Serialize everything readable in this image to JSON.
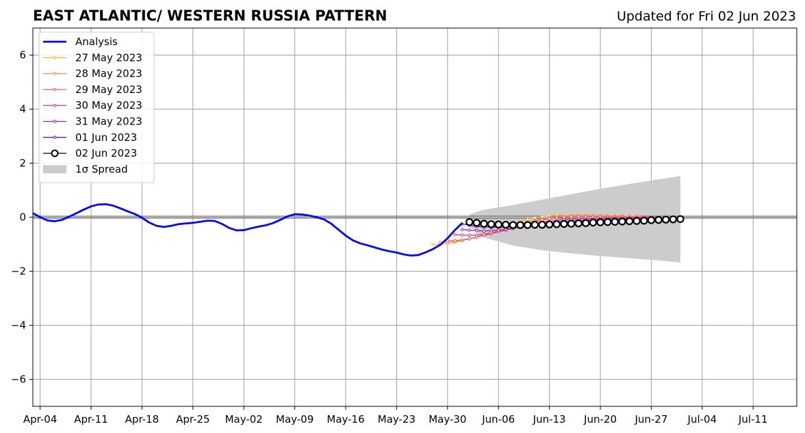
{
  "chart_data": {
    "type": "line",
    "title": "EAST ATLANTIC/ WESTERN RUSSIA PATTERN",
    "subtitle": "Updated for Fri 02 Jun 2023",
    "xlabel": "",
    "ylabel": "",
    "xlim": [
      "2023-04-03",
      "2023-07-17"
    ],
    "ylim": [
      -7,
      7
    ],
    "grid": true,
    "legend_position": "top-left",
    "x_ticks": [
      "Apr-04",
      "Apr-11",
      "Apr-18",
      "Apr-25",
      "May-02",
      "May-09",
      "May-16",
      "May-23",
      "May-30",
      "Jun-06",
      "Jun-13",
      "Jun-20",
      "Jun-27",
      "Jul-04",
      "Jul-11"
    ],
    "x_tick_dates": [
      "2023-04-04",
      "2023-04-11",
      "2023-04-18",
      "2023-04-25",
      "2023-05-02",
      "2023-05-09",
      "2023-05-16",
      "2023-05-23",
      "2023-05-30",
      "2023-06-06",
      "2023-06-13",
      "2023-06-20",
      "2023-06-27",
      "2023-07-04",
      "2023-07-11"
    ],
    "y_ticks": [
      6,
      4,
      2,
      0,
      -2,
      -4,
      -6
    ],
    "y_tick_labels": [
      "6",
      "4",
      "2",
      "0",
      "−2",
      "−4",
      "−6"
    ],
    "spread": {
      "name": "1σ Spread",
      "color": "#cccccc",
      "x": [
        "2023-06-02",
        "2023-06-04",
        "2023-06-08",
        "2023-06-12",
        "2023-06-16",
        "2023-06-20",
        "2023-06-24",
        "2023-06-28",
        "2023-07-01"
      ],
      "upper": [
        0.1,
        0.28,
        0.45,
        0.65,
        0.85,
        1.05,
        1.23,
        1.4,
        1.53
      ],
      "lower": [
        -0.35,
        -0.75,
        -1.05,
        -1.22,
        -1.34,
        -1.44,
        -1.52,
        -1.6,
        -1.68
      ]
    },
    "analysis": {
      "name": "Analysis",
      "color": "#0000ff",
      "x": [
        "2023-04-03",
        "2023-04-04",
        "2023-04-05",
        "2023-04-06",
        "2023-04-07",
        "2023-04-08",
        "2023-04-09",
        "2023-04-10",
        "2023-04-11",
        "2023-04-12",
        "2023-04-13",
        "2023-04-14",
        "2023-04-15",
        "2023-04-16",
        "2023-04-17",
        "2023-04-18",
        "2023-04-19",
        "2023-04-20",
        "2023-04-21",
        "2023-04-22",
        "2023-04-23",
        "2023-04-24",
        "2023-04-25",
        "2023-04-26",
        "2023-04-27",
        "2023-04-28",
        "2023-04-29",
        "2023-04-30",
        "2023-05-01",
        "2023-05-02",
        "2023-05-03",
        "2023-05-04",
        "2023-05-05",
        "2023-05-06",
        "2023-05-07",
        "2023-05-08",
        "2023-05-09",
        "2023-05-10",
        "2023-05-11",
        "2023-05-12",
        "2023-05-13",
        "2023-05-14",
        "2023-05-15",
        "2023-05-16",
        "2023-05-17",
        "2023-05-18",
        "2023-05-19",
        "2023-05-20",
        "2023-05-21",
        "2023-05-22",
        "2023-05-23",
        "2023-05-24",
        "2023-05-25",
        "2023-05-26",
        "2023-05-27",
        "2023-05-28",
        "2023-05-29",
        "2023-05-30",
        "2023-05-31",
        "2023-06-01"
      ],
      "values": [
        0.15,
        0.0,
        -0.12,
        -0.15,
        -0.1,
        0.02,
        0.15,
        0.28,
        0.4,
        0.47,
        0.48,
        0.43,
        0.33,
        0.22,
        0.12,
        -0.02,
        -0.2,
        -0.32,
        -0.36,
        -0.32,
        -0.26,
        -0.23,
        -0.21,
        -0.17,
        -0.13,
        -0.14,
        -0.25,
        -0.4,
        -0.49,
        -0.48,
        -0.41,
        -0.35,
        -0.3,
        -0.22,
        -0.1,
        0.03,
        0.11,
        0.1,
        0.06,
        0.0,
        -0.08,
        -0.24,
        -0.46,
        -0.68,
        -0.86,
        -0.97,
        -1.04,
        -1.12,
        -1.2,
        -1.26,
        -1.31,
        -1.38,
        -1.42,
        -1.4,
        -1.3,
        -1.18,
        -1.02,
        -0.78,
        -0.48,
        -0.22
      ]
    },
    "series": [
      {
        "name": "27 May 2023",
        "color": "#fbb43a",
        "x": [
          "2023-05-28",
          "2023-05-29",
          "2023-05-30",
          "2023-05-31",
          "2023-06-01",
          "2023-06-02",
          "2023-06-03",
          "2023-06-04",
          "2023-06-05",
          "2023-06-06",
          "2023-06-07",
          "2023-06-08",
          "2023-06-09",
          "2023-06-10",
          "2023-06-11",
          "2023-06-12",
          "2023-06-13",
          "2023-06-14",
          "2023-06-15",
          "2023-06-16",
          "2023-06-17",
          "2023-06-18",
          "2023-06-19",
          "2023-06-20",
          "2023-06-21",
          "2023-06-22",
          "2023-06-23",
          "2023-06-24",
          "2023-06-25",
          "2023-06-26"
        ],
        "values": [
          -1.02,
          -1.0,
          -0.98,
          -0.93,
          -0.87,
          -0.8,
          -0.72,
          -0.63,
          -0.53,
          -0.43,
          -0.34,
          -0.25,
          -0.16,
          -0.08,
          -0.02,
          0.02,
          0.05,
          0.07,
          0.08,
          0.08,
          0.08,
          0.07,
          0.07,
          0.06,
          0.06,
          0.05,
          0.05,
          0.04,
          0.03,
          0.02
        ]
      },
      {
        "name": "28 May 2023",
        "color": "#f58a4a",
        "x": [
          "2023-05-29",
          "2023-05-30",
          "2023-05-31",
          "2023-06-01",
          "2023-06-02",
          "2023-06-03",
          "2023-06-04",
          "2023-06-05",
          "2023-06-06",
          "2023-06-07",
          "2023-06-08",
          "2023-06-09",
          "2023-06-10",
          "2023-06-11",
          "2023-06-12",
          "2023-06-13",
          "2023-06-14",
          "2023-06-15",
          "2023-06-16",
          "2023-06-17",
          "2023-06-18",
          "2023-06-19",
          "2023-06-20",
          "2023-06-21",
          "2023-06-22",
          "2023-06-23",
          "2023-06-24",
          "2023-06-25",
          "2023-06-26",
          "2023-06-27"
        ],
        "values": [
          -0.93,
          -0.92,
          -0.9,
          -0.86,
          -0.81,
          -0.74,
          -0.66,
          -0.58,
          -0.5,
          -0.42,
          -0.34,
          -0.26,
          -0.19,
          -0.12,
          -0.07,
          -0.02,
          0.01,
          0.03,
          0.04,
          0.05,
          0.05,
          0.05,
          0.05,
          0.04,
          0.04,
          0.03,
          0.03,
          0.02,
          0.02,
          0.01
        ]
      },
      {
        "name": "29 May 2023",
        "color": "#e65a6a",
        "x": [
          "2023-05-30",
          "2023-05-31",
          "2023-06-01",
          "2023-06-02",
          "2023-06-03",
          "2023-06-04",
          "2023-06-05",
          "2023-06-06",
          "2023-06-07",
          "2023-06-08",
          "2023-06-09",
          "2023-06-10",
          "2023-06-11",
          "2023-06-12",
          "2023-06-13",
          "2023-06-14",
          "2023-06-15",
          "2023-06-16",
          "2023-06-17",
          "2023-06-18",
          "2023-06-19",
          "2023-06-20",
          "2023-06-21",
          "2023-06-22",
          "2023-06-23",
          "2023-06-24",
          "2023-06-25",
          "2023-06-26",
          "2023-06-27",
          "2023-06-28"
        ],
        "values": [
          -0.86,
          -0.86,
          -0.84,
          -0.8,
          -0.75,
          -0.68,
          -0.61,
          -0.54,
          -0.46,
          -0.38,
          -0.3,
          -0.22,
          -0.15,
          -0.1,
          -0.05,
          -0.02,
          0.0,
          0.02,
          0.02,
          0.02,
          0.02,
          0.02,
          0.01,
          0.01,
          0.01,
          0.0,
          0.0,
          0.0,
          0.0,
          -0.01
        ]
      },
      {
        "name": "30 May 2023",
        "color": "#c23b8f",
        "x": [
          "2023-05-31",
          "2023-06-01",
          "2023-06-02",
          "2023-06-03",
          "2023-06-04",
          "2023-06-05",
          "2023-06-06",
          "2023-06-07",
          "2023-06-08",
          "2023-06-09",
          "2023-06-10",
          "2023-06-11",
          "2023-06-12",
          "2023-06-13",
          "2023-06-14",
          "2023-06-15",
          "2023-06-16",
          "2023-06-17",
          "2023-06-18",
          "2023-06-19",
          "2023-06-20",
          "2023-06-21",
          "2023-06-22",
          "2023-06-23",
          "2023-06-24",
          "2023-06-25",
          "2023-06-26",
          "2023-06-27",
          "2023-06-28",
          "2023-06-29"
        ],
        "values": [
          -0.65,
          -0.66,
          -0.67,
          -0.66,
          -0.63,
          -0.59,
          -0.54,
          -0.48,
          -0.42,
          -0.36,
          -0.3,
          -0.24,
          -0.19,
          -0.15,
          -0.12,
          -0.09,
          -0.07,
          -0.06,
          -0.05,
          -0.04,
          -0.04,
          -0.03,
          -0.03,
          -0.03,
          -0.02,
          -0.02,
          -0.02,
          -0.02,
          -0.02,
          -0.02
        ]
      },
      {
        "name": "31 May 2023",
        "color": "#9a1fa8",
        "x": [
          "2023-06-01",
          "2023-06-02",
          "2023-06-03",
          "2023-06-04",
          "2023-06-05",
          "2023-06-06",
          "2023-06-07",
          "2023-06-08",
          "2023-06-09",
          "2023-06-10",
          "2023-06-11",
          "2023-06-12",
          "2023-06-13",
          "2023-06-14",
          "2023-06-15",
          "2023-06-16",
          "2023-06-17",
          "2023-06-18",
          "2023-06-19",
          "2023-06-20",
          "2023-06-21",
          "2023-06-22",
          "2023-06-23",
          "2023-06-24",
          "2023-06-25",
          "2023-06-26",
          "2023-06-27",
          "2023-06-28",
          "2023-06-29",
          "2023-06-30"
        ],
        "values": [
          -0.46,
          -0.48,
          -0.5,
          -0.51,
          -0.5,
          -0.48,
          -0.45,
          -0.41,
          -0.37,
          -0.33,
          -0.29,
          -0.25,
          -0.22,
          -0.19,
          -0.16,
          -0.14,
          -0.12,
          -0.1,
          -0.09,
          -0.08,
          -0.07,
          -0.06,
          -0.06,
          -0.05,
          -0.05,
          -0.04,
          -0.04,
          -0.04,
          -0.04,
          -0.04
        ]
      },
      {
        "name": "01 Jun 2023",
        "color": "#5a189a",
        "x": [
          "2023-06-01",
          "2023-06-02",
          "2023-06-03",
          "2023-06-04",
          "2023-06-05",
          "2023-06-06",
          "2023-06-07",
          "2023-06-08",
          "2023-06-09",
          "2023-06-10",
          "2023-06-11",
          "2023-06-12",
          "2023-06-13",
          "2023-06-14",
          "2023-06-15",
          "2023-06-16",
          "2023-06-17",
          "2023-06-18",
          "2023-06-19",
          "2023-06-20",
          "2023-06-21",
          "2023-06-22",
          "2023-06-23",
          "2023-06-24",
          "2023-06-25",
          "2023-06-26",
          "2023-06-27",
          "2023-06-28",
          "2023-06-29",
          "2023-06-30"
        ],
        "values": [
          -0.25,
          -0.3,
          -0.34,
          -0.36,
          -0.37,
          -0.37,
          -0.36,
          -0.35,
          -0.33,
          -0.31,
          -0.29,
          -0.27,
          -0.25,
          -0.23,
          -0.21,
          -0.19,
          -0.17,
          -0.15,
          -0.14,
          -0.13,
          -0.12,
          -0.11,
          -0.1,
          -0.09,
          -0.09,
          -0.08,
          -0.08,
          -0.07,
          -0.07,
          -0.07
        ]
      },
      {
        "name": "02 Jun 2023",
        "color": "#000000",
        "x": [
          "2023-06-02",
          "2023-06-03",
          "2023-06-04",
          "2023-06-05",
          "2023-06-06",
          "2023-06-07",
          "2023-06-08",
          "2023-06-09",
          "2023-06-10",
          "2023-06-11",
          "2023-06-12",
          "2023-06-13",
          "2023-06-14",
          "2023-06-15",
          "2023-06-16",
          "2023-06-17",
          "2023-06-18",
          "2023-06-19",
          "2023-06-20",
          "2023-06-21",
          "2023-06-22",
          "2023-06-23",
          "2023-06-24",
          "2023-06-25",
          "2023-06-26",
          "2023-06-27",
          "2023-06-28",
          "2023-06-29",
          "2023-06-30",
          "2023-07-01"
        ],
        "values": [
          -0.18,
          -0.21,
          -0.24,
          -0.26,
          -0.27,
          -0.28,
          -0.29,
          -0.29,
          -0.29,
          -0.28,
          -0.28,
          -0.27,
          -0.26,
          -0.25,
          -0.24,
          -0.23,
          -0.22,
          -0.2,
          -0.19,
          -0.18,
          -0.17,
          -0.16,
          -0.15,
          -0.14,
          -0.13,
          -0.11,
          -0.1,
          -0.09,
          -0.08,
          -0.07
        ]
      }
    ]
  }
}
